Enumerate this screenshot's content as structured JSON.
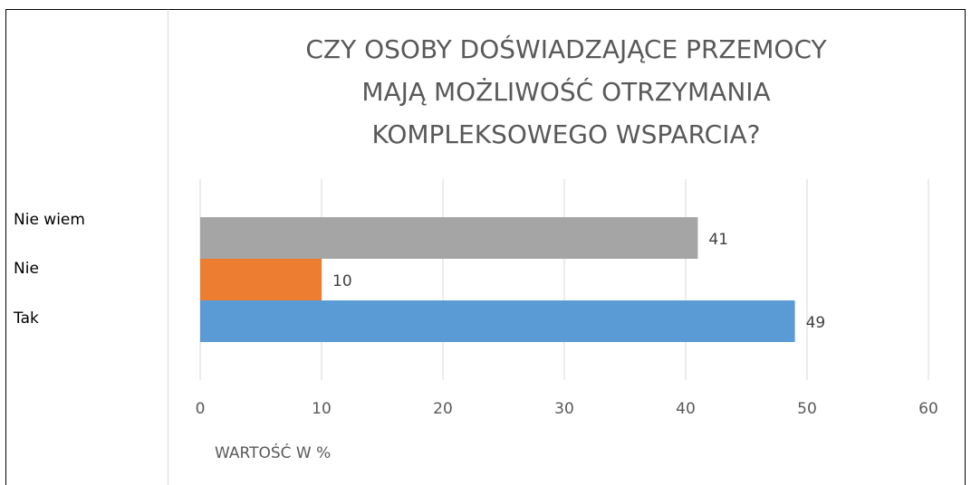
{
  "chart_data": {
    "type": "hbar",
    "title": [
      "CZY OSOBY DOŚWIADZAJĄCE PRZEMOCY",
      "MAJĄ MOŻLIWOŚĆ OTRZYMANIA",
      "KOMPLEKSOWEGO WSPARCIA?"
    ],
    "categories": [
      "Nie wiem",
      "Nie",
      "Tak"
    ],
    "values": [
      41,
      10,
      49
    ],
    "colors": [
      "#a5a5a5",
      "#ed7d31",
      "#5b9bd5"
    ],
    "xlim": [
      0,
      60
    ],
    "xticks": [
      0,
      10,
      20,
      30,
      40,
      50,
      60
    ],
    "xlabel": "WARTOŚĆ W %",
    "grid": true
  }
}
